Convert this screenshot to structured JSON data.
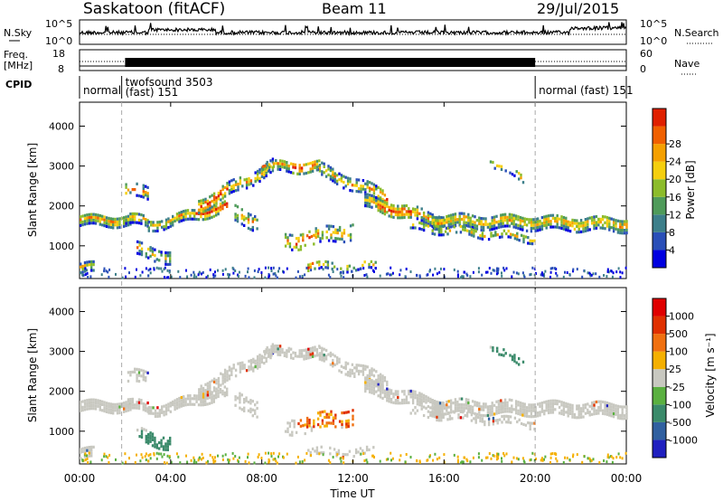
{
  "header": {
    "title": "Saskatoon (fitACF)",
    "beam": "Beam 11",
    "date": "29/Jul/2015"
  },
  "nsky_panel": {
    "left_label": "N.Sky",
    "right_label": "N.Search",
    "left_ticks": [
      "10^5",
      "10^0"
    ],
    "right_ticks": [
      "10^5",
      "10^0"
    ]
  },
  "freq_panel": {
    "left_label_line1": "Freq.",
    "left_label_line2": "[MHz]",
    "right_label": "Nave",
    "left_ticks": [
      "18",
      "8"
    ],
    "right_ticks": [
      "60",
      "0"
    ]
  },
  "cpid_panel": {
    "label": "CPID",
    "segments": [
      {
        "line1": "normal",
        "line2": "",
        "start_h": 0,
        "end_h": 1.85
      },
      {
        "line1": "twofsound 3503",
        "line2": "(fast) 151",
        "start_h": 1.85,
        "end_h": 20.0
      },
      {
        "line1": "normal (fast) 151",
        "line2": "",
        "start_h": 20.0,
        "end_h": 24
      }
    ]
  },
  "chart_data": [
    {
      "type": "heatmap",
      "id": "power",
      "ylabel": "Slant Range [km]",
      "yticks": [
        "1000",
        "2000",
        "3000",
        "4000"
      ],
      "ylim": [
        180,
        4600
      ],
      "xlim_hours": [
        0,
        24
      ],
      "colorbar": {
        "label": "Power [dB]",
        "ticks": [
          "4",
          "8",
          "12",
          "16",
          "20",
          "24",
          "28"
        ],
        "colors": [
          "#0000e0",
          "#2a4fb8",
          "#3d7f8a",
          "#4f9b5a",
          "#8cbc2a",
          "#f5cf0e",
          "#f5a000",
          "#f06000",
          "#e02000"
        ]
      }
    },
    {
      "type": "heatmap",
      "id": "velocity",
      "ylabel": "Slant Range [km]",
      "yticks": [
        "1000",
        "2000",
        "3000",
        "4000"
      ],
      "ylim": [
        180,
        4600
      ],
      "xlim_hours": [
        0,
        24
      ],
      "colorbar": {
        "label": "Velocity [m s⁻¹]",
        "ticks": [
          "1000",
          "500",
          "100",
          "25",
          "-25",
          "-100",
          "-500",
          "-1000"
        ],
        "colors": [
          "#2020c0",
          "#3060a0",
          "#3a8a6a",
          "#5ab040",
          "#c8c8c0",
          "#f5b000",
          "#f07010",
          "#e03000",
          "#e00000"
        ]
      }
    }
  ],
  "xaxis": {
    "ticks": [
      "00:00",
      "04:00",
      "08:00",
      "12:00",
      "16:00",
      "20:00",
      "00:00"
    ],
    "label": "Time UT"
  }
}
